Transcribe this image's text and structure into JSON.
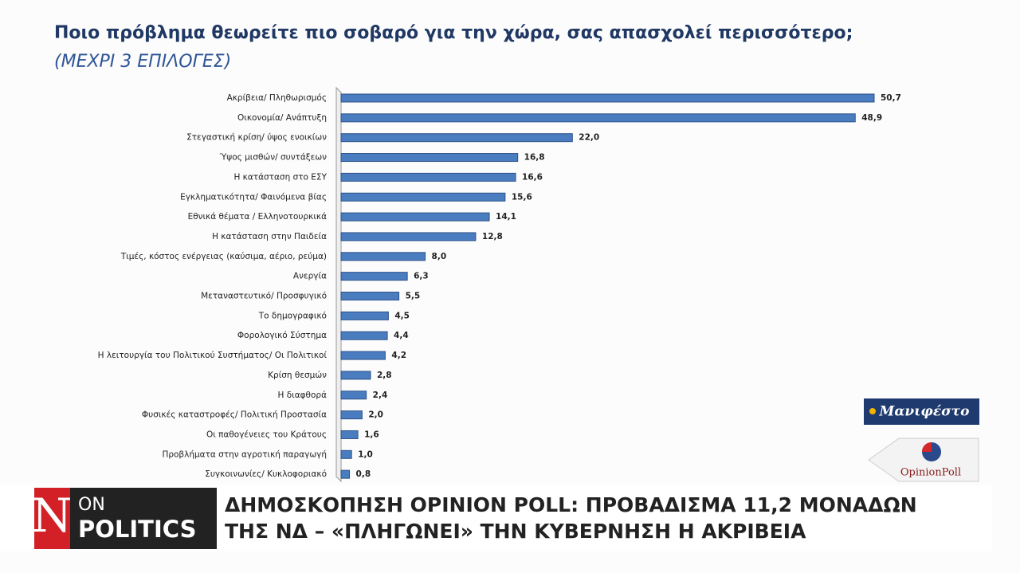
{
  "chart_data": {
    "type": "hbar",
    "title": "Ποιο πρόβλημα θεωρείτε πιο σοβαρό για την χώρα, σας απασχολεί περισσότερο;",
    "subtitle": "(ΜΕΧΡΙ 3 ΕΠΙΛΟΓΕΣ)",
    "categories": [
      "Ακρίβεια/ Πληθωρισμός",
      "Οικονομία/ Ανάπτυξη",
      "Στεγαστική κρίση/ ύψος ενοικίων",
      "Ύψος μισθών/ συντάξεων",
      "Η κατάσταση στο ΕΣΥ",
      "Εγκληματικότητα/ Φαινόμενα βίας",
      "Εθνικά θέματα / Ελληνοτουρκικά",
      "Η κατάσταση στην Παιδεία",
      "Τιμές, κόστος ενέργειας (καύσιμα, αέριο, ρεύμα)",
      "Ανεργία",
      "Μεταναστευτικό/ Προσφυγικό",
      "Το δημογραφικό",
      "Φορολογικό Σύστημα",
      "Η λειτουργία του Πολιτικού Συστήματος/ Οι Πολιτικοί",
      "Κρίση θεσμών",
      "Η διαφθορά",
      "Φυσικές καταστροφές/ Πολιτική Προστασία",
      "Οι παθογένειες του Κράτους",
      "Προβλήματα στην αγροτική παραγωγή",
      "Συγκοινωνίες/ Κυκλοφοριακό"
    ],
    "values": [
      50.7,
      48.9,
      22.0,
      16.8,
      16.6,
      15.6,
      14.1,
      12.8,
      8.0,
      6.3,
      5.5,
      4.5,
      4.4,
      4.2,
      2.8,
      2.4,
      2.0,
      1.6,
      1.0,
      0.8
    ],
    "value_labels": [
      "50,7",
      "48,9",
      "22,0",
      "16,8",
      "16,6",
      "15,6",
      "14,1",
      "12,8",
      "8,0",
      "6,3",
      "5,5",
      "4,5",
      "4,4",
      "4,2",
      "2,8",
      "2,4",
      "2,0",
      "1,6",
      "1,0",
      "0,8"
    ],
    "color": "#4a7cc0"
  },
  "branding": {
    "logo_manifesto": "Μανιφέστο",
    "logo_opinion": "OpinionPoll",
    "channel_letter": "N",
    "channel_on": "ON",
    "channel_politics": "POLITICS",
    "headline": [
      "ΔΗΜΟΣΚΟΠΗΣΗ OPINION POLL: ΠΡΟΒΑΔΙΣΜΑ 11,2 ΜΟΝΑΔΩΝ",
      "ΤΗΣ ΝΔ – «ΠΛΗΓΩΝΕΙ» ΤΗΝ ΚΥΒΕΡΝΗΣΗ Η ΑΚΡΙΒΕΙΑ"
    ]
  }
}
